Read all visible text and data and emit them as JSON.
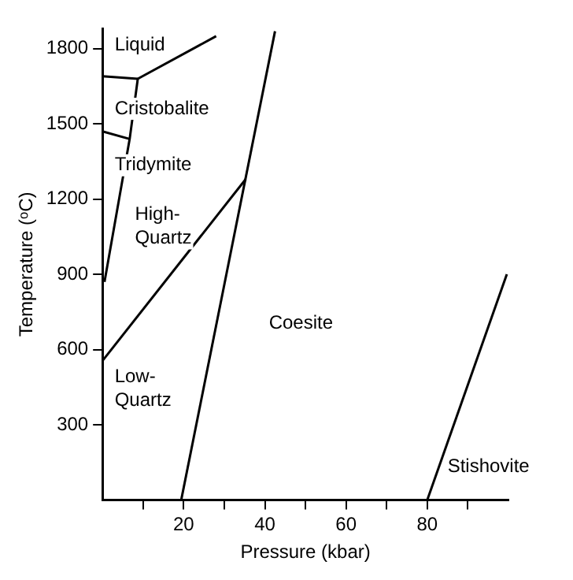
{
  "chart_data": {
    "type": "line",
    "xlabel": "Pressure (kbar)",
    "ylabel": "Temperature (ᵒC)",
    "xlim": [
      0,
      100
    ],
    "ylim": [
      0,
      1880
    ],
    "xticks": [
      {
        "value": 10,
        "label": null
      },
      20,
      {
        "value": 30,
        "label": null
      },
      40,
      {
        "value": 50,
        "label": null
      },
      60,
      {
        "value": 70,
        "label": null
      },
      80,
      {
        "value": 90,
        "label": null
      }
    ],
    "yticks": [
      300,
      600,
      900,
      1200,
      1500,
      1800
    ],
    "grid": false,
    "legend": false,
    "marker": "none",
    "line_style": "solid",
    "series": [
      {
        "color": "#000000",
        "x": [
          0,
          8.7
        ],
        "values": [
          1690,
          1680
        ]
      },
      {
        "color": "#000000",
        "x": [
          8.7,
          28
        ],
        "values": [
          1680,
          1850
        ]
      },
      {
        "color": "#000000",
        "x": [
          0,
          6.7
        ],
        "values": [
          1470,
          1440
        ]
      },
      {
        "color": "#000000",
        "x": [
          8.7,
          6.7,
          0.5
        ],
        "values": [
          1680,
          1440,
          870
        ]
      },
      {
        "color": "#000000",
        "x": [
          0,
          35.3
        ],
        "values": [
          555,
          1280
        ]
      },
      {
        "color": "#000000",
        "x": [
          19.4,
          42.5
        ],
        "values": [
          0,
          1870
        ]
      },
      {
        "color": "#000000",
        "x": [
          80,
          99.6
        ],
        "values": [
          0,
          900
        ]
      }
    ],
    "annotations": [
      "Liquid",
      "Cristobalite",
      "Tridymite",
      "High-\nQuartz",
      "Low-\nQuartz",
      "Coesite",
      "Stishovite"
    ]
  }
}
